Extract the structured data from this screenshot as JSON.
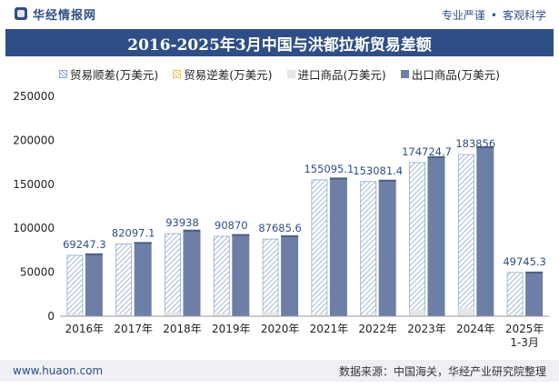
{
  "header": {
    "brand": "华经情报网",
    "slogan_left": "专业严谨",
    "slogan_right": "客观科学",
    "title": "2016-2025年3月中国与洪都拉斯贸易差额"
  },
  "legend": [
    {
      "label": "贸易顺差(万美元)",
      "style": "hatch-blue"
    },
    {
      "label": "贸易逆差(万美元)",
      "style": "hatch-yellow"
    },
    {
      "label": "进口商品(万美元)",
      "style": "gray"
    },
    {
      "label": "出口商品(万美元)",
      "style": "blue"
    }
  ],
  "footer": {
    "site": "www.huaon.com",
    "source": "数据来源：中国海关，华经产业研究院整理"
  },
  "colors": {
    "title_bg": "#2f4e86",
    "surplus": "#8fa9cc",
    "deficit": "#e8c860",
    "import": "#e6e6e6",
    "export": "#6d7fa6",
    "label": "#2f4e86"
  },
  "chart_data": {
    "type": "bar",
    "categories": [
      "2016年",
      "2017年",
      "2018年",
      "2019年",
      "2020年",
      "2021年",
      "2022年",
      "2023年",
      "2024年",
      "2025年\n1-3月"
    ],
    "series": [
      {
        "name": "贸易顺差(万美元)",
        "values": [
          69247.3,
          82097.1,
          93938,
          90870,
          87685.6,
          155095.1,
          153081.4,
          174724.7,
          183856,
          49745.3
        ]
      },
      {
        "name": "贸易逆差(万美元)",
        "values": [
          0,
          0,
          0,
          0,
          0,
          0,
          0,
          0,
          0,
          0
        ]
      },
      {
        "name": "进口商品(万美元)",
        "values": [
          2200,
          2200,
          4300,
          2400,
          4300,
          2500,
          2000,
          7200,
          9200,
          1000
        ]
      },
      {
        "name": "出口商品(万美元)",
        "values": [
          71400,
          84300,
          98300,
          93300,
          92000,
          157600,
          155100,
          181900,
          193100,
          50700
        ]
      }
    ],
    "data_labels": [
      "69247.3",
      "82097.1",
      "93938",
      "90870",
      "87685.6",
      "155095.1",
      "153081.4",
      "174724.7",
      "183856",
      "49745.3"
    ],
    "yticks": [
      0,
      50000,
      100000,
      150000,
      200000,
      250000
    ],
    "ylim": [
      0,
      250000
    ],
    "grid": false,
    "legend_position": "top"
  }
}
